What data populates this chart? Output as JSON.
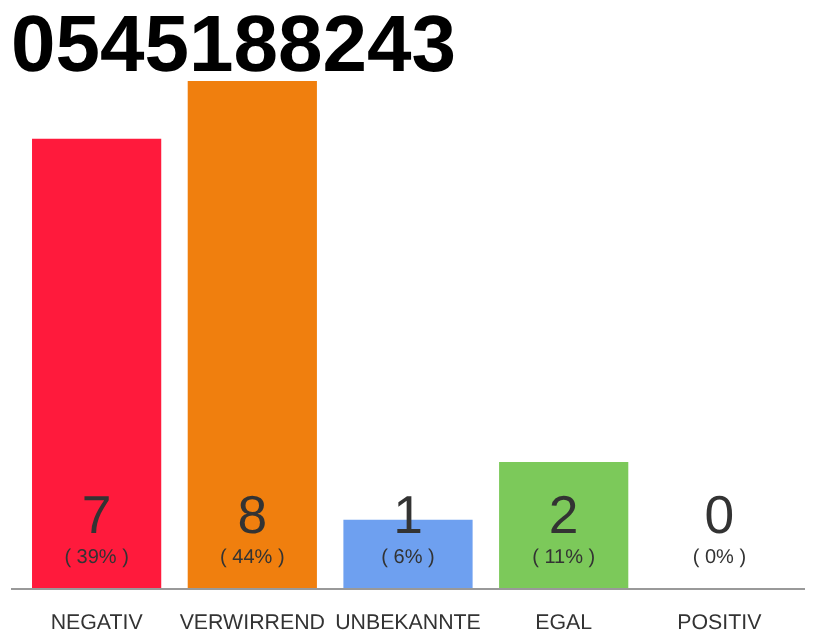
{
  "chart_data": {
    "type": "bar",
    "title": "0545188243",
    "categories": [
      "NEGATIV",
      "VERWIRREND",
      "UNBEKANNTE",
      "EGAL",
      "POSITIV"
    ],
    "values": [
      39,
      44,
      6,
      11,
      0
    ],
    "colors": [
      "#ff1a3c",
      "#f07f0e",
      "#6ea0f0",
      "#7cc95a",
      "#e0e0e0"
    ],
    "grid": false,
    "value_labels": [
      "( 39% )",
      "( 44% )",
      "( 6% )",
      "( 11% )",
      "( 0% )"
    ],
    "annotations": [
      "7",
      "8",
      "1",
      "2",
      "0"
    ]
  }
}
